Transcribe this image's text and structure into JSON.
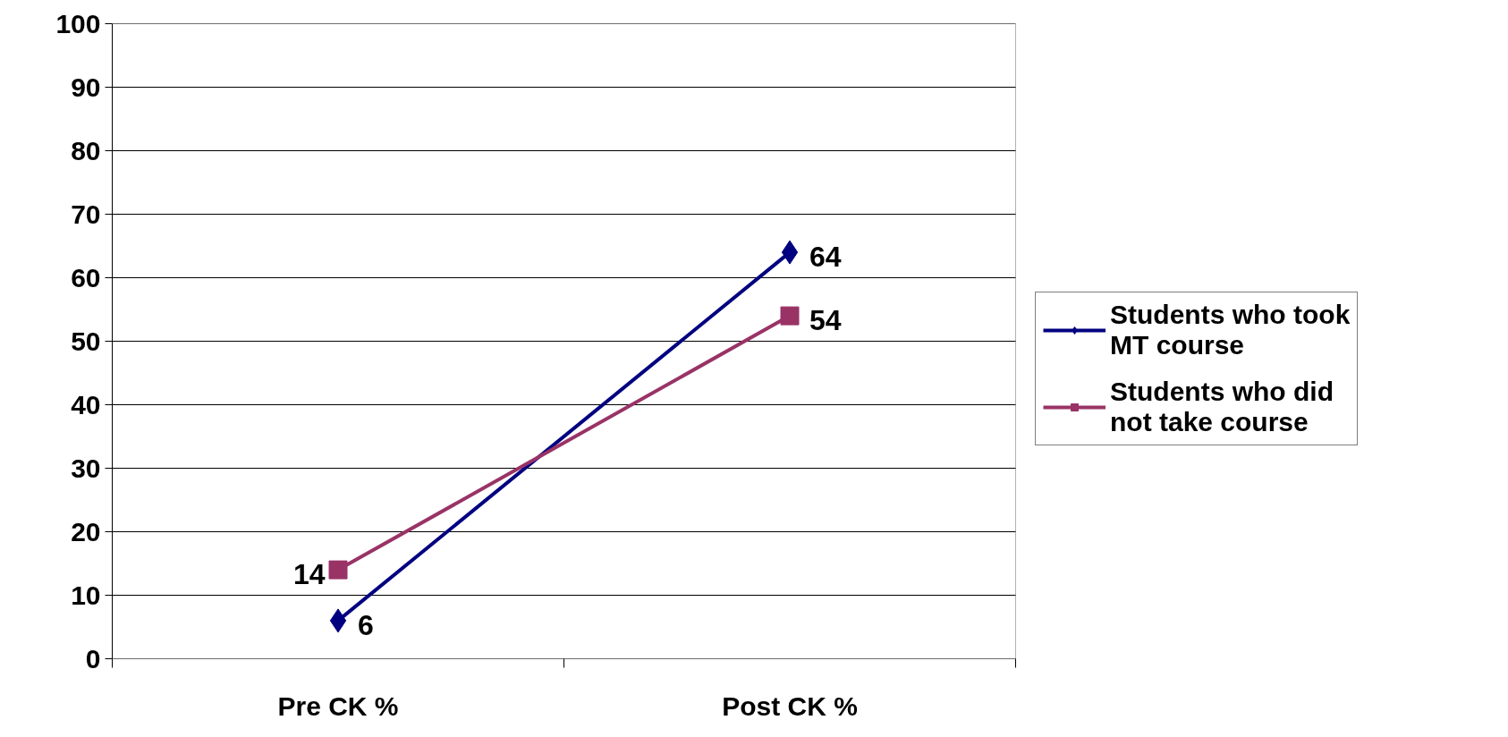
{
  "chart_data": {
    "type": "line",
    "categories": [
      "Pre CK %",
      "Post CK %"
    ],
    "series": [
      {
        "name": "Students who took MT course",
        "color": "#000080",
        "marker": "diamond",
        "values": [
          6,
          64
        ]
      },
      {
        "name": "Students who did not take course",
        "color": "#993366",
        "marker": "square",
        "values": [
          14,
          54
        ]
      }
    ],
    "ylim": [
      0,
      100
    ],
    "yticks": [
      0,
      10,
      20,
      30,
      40,
      50,
      60,
      70,
      80,
      90,
      100
    ],
    "grid": "y",
    "legend": "right",
    "data_labels": true
  }
}
